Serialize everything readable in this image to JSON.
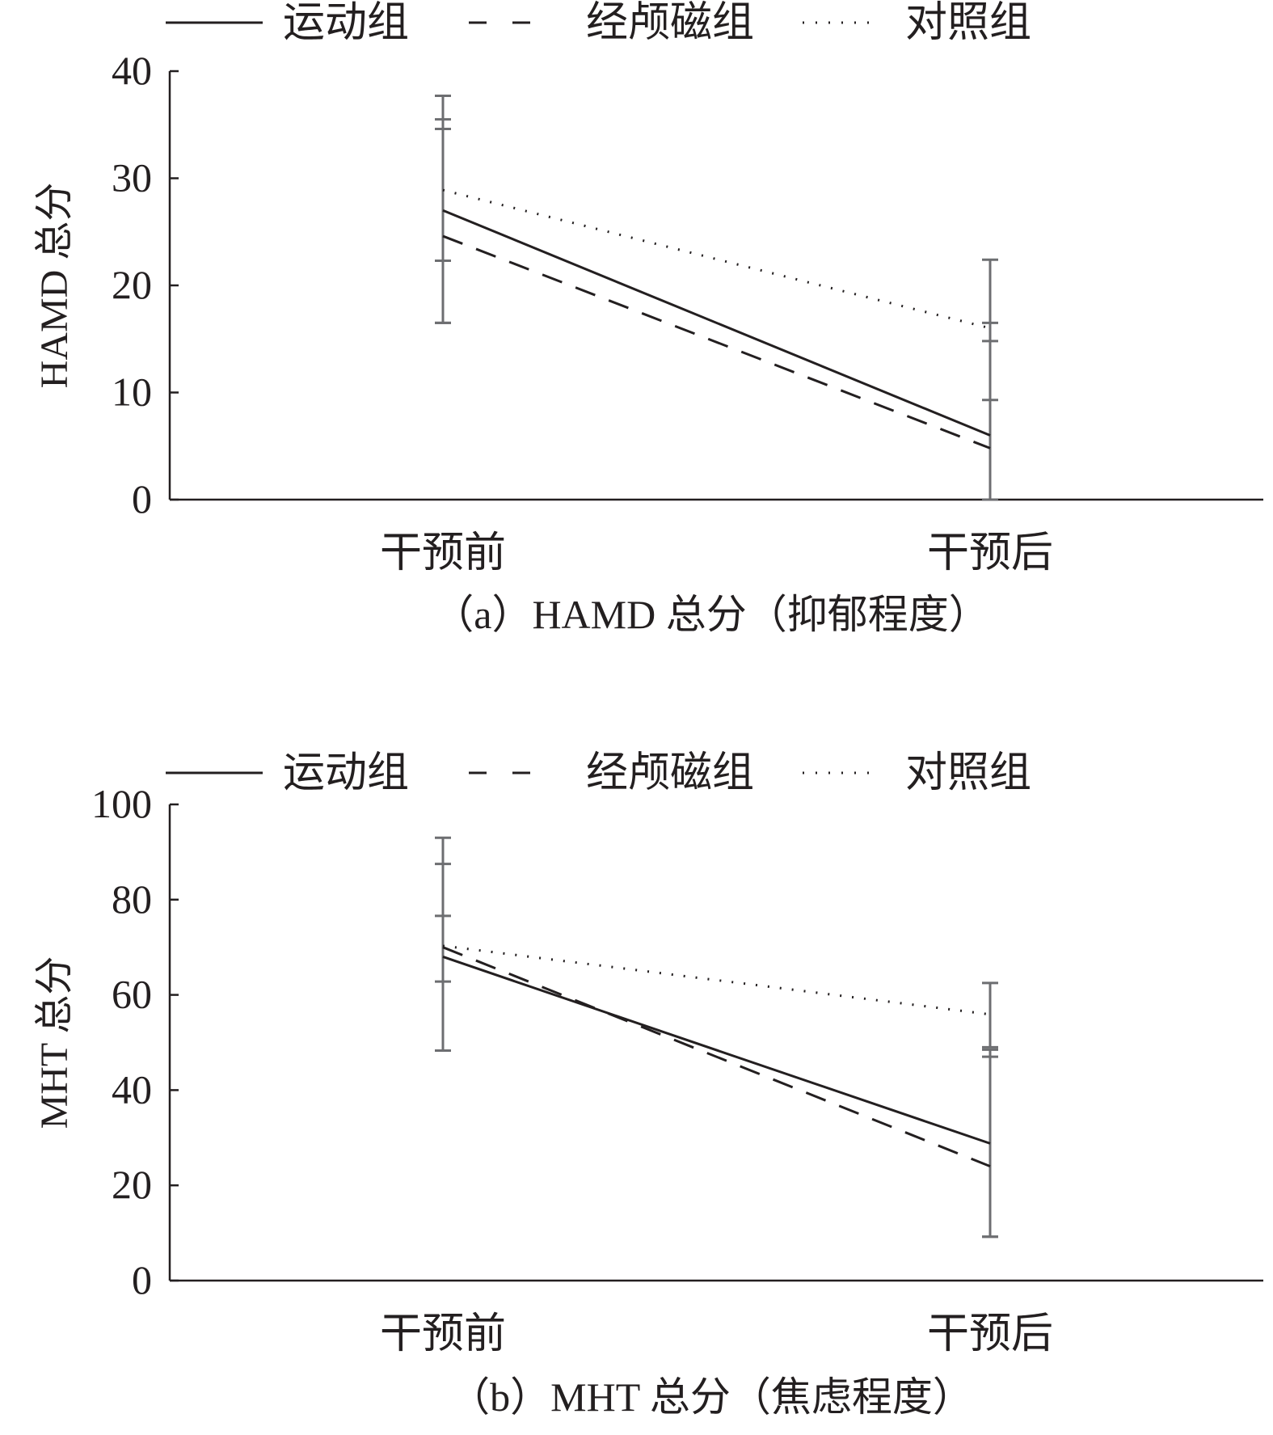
{
  "chart_data": [
    {
      "type": "line",
      "panel_caption": "（a）HAMD 总分（抑郁程度）",
      "ylabel": "HAMD 总分",
      "xlabel": "",
      "categories": [
        "干预前",
        "干预后"
      ],
      "ylim": [
        0,
        40
      ],
      "yticks": [
        0,
        10,
        20,
        30,
        40
      ],
      "legend_position": "top",
      "grid": false,
      "series": [
        {
          "name": "运动组",
          "style": "solid",
          "values": [
            27.0,
            6.0
          ],
          "error_upper": [
            35.5,
            16.5
          ],
          "error_lower": [
            22.3,
            0.0
          ]
        },
        {
          "name": "经颅磁组",
          "style": "dashed",
          "values": [
            24.6,
            4.8
          ],
          "error_upper": [
            34.6,
            14.8
          ],
          "error_lower": [
            16.5,
            0.0
          ]
        },
        {
          "name": "对照组",
          "style": "dotted",
          "values": [
            28.9,
            16.0
          ],
          "error_upper": [
            37.7,
            22.4
          ],
          "error_lower": [
            16.5,
            9.3
          ]
        }
      ]
    },
    {
      "type": "line",
      "panel_caption": "（b）MHT 总分（焦虑程度）",
      "ylabel": "MHT 总分",
      "xlabel": "",
      "categories": [
        "干预前",
        "干预后"
      ],
      "ylim": [
        0,
        100
      ],
      "yticks": [
        0,
        20,
        40,
        60,
        80,
        100
      ],
      "legend_position": "top",
      "grid": false,
      "series": [
        {
          "name": "运动组",
          "style": "solid",
          "values": [
            68.0,
            28.8
          ],
          "error_upper": [
            87.5,
            48.5
          ],
          "error_lower": [
            62.8,
            9.2
          ]
        },
        {
          "name": "经颅磁组",
          "style": "dashed",
          "values": [
            70.0,
            24.0
          ],
          "error_upper": [
            93.0,
            47.0
          ],
          "error_lower": [
            48.3,
            9.2
          ]
        },
        {
          "name": "对照组",
          "style": "dotted",
          "values": [
            70.3,
            55.9
          ],
          "error_upper": [
            76.6,
            62.5
          ],
          "error_lower": [
            48.3,
            49.0
          ]
        }
      ]
    }
  ]
}
